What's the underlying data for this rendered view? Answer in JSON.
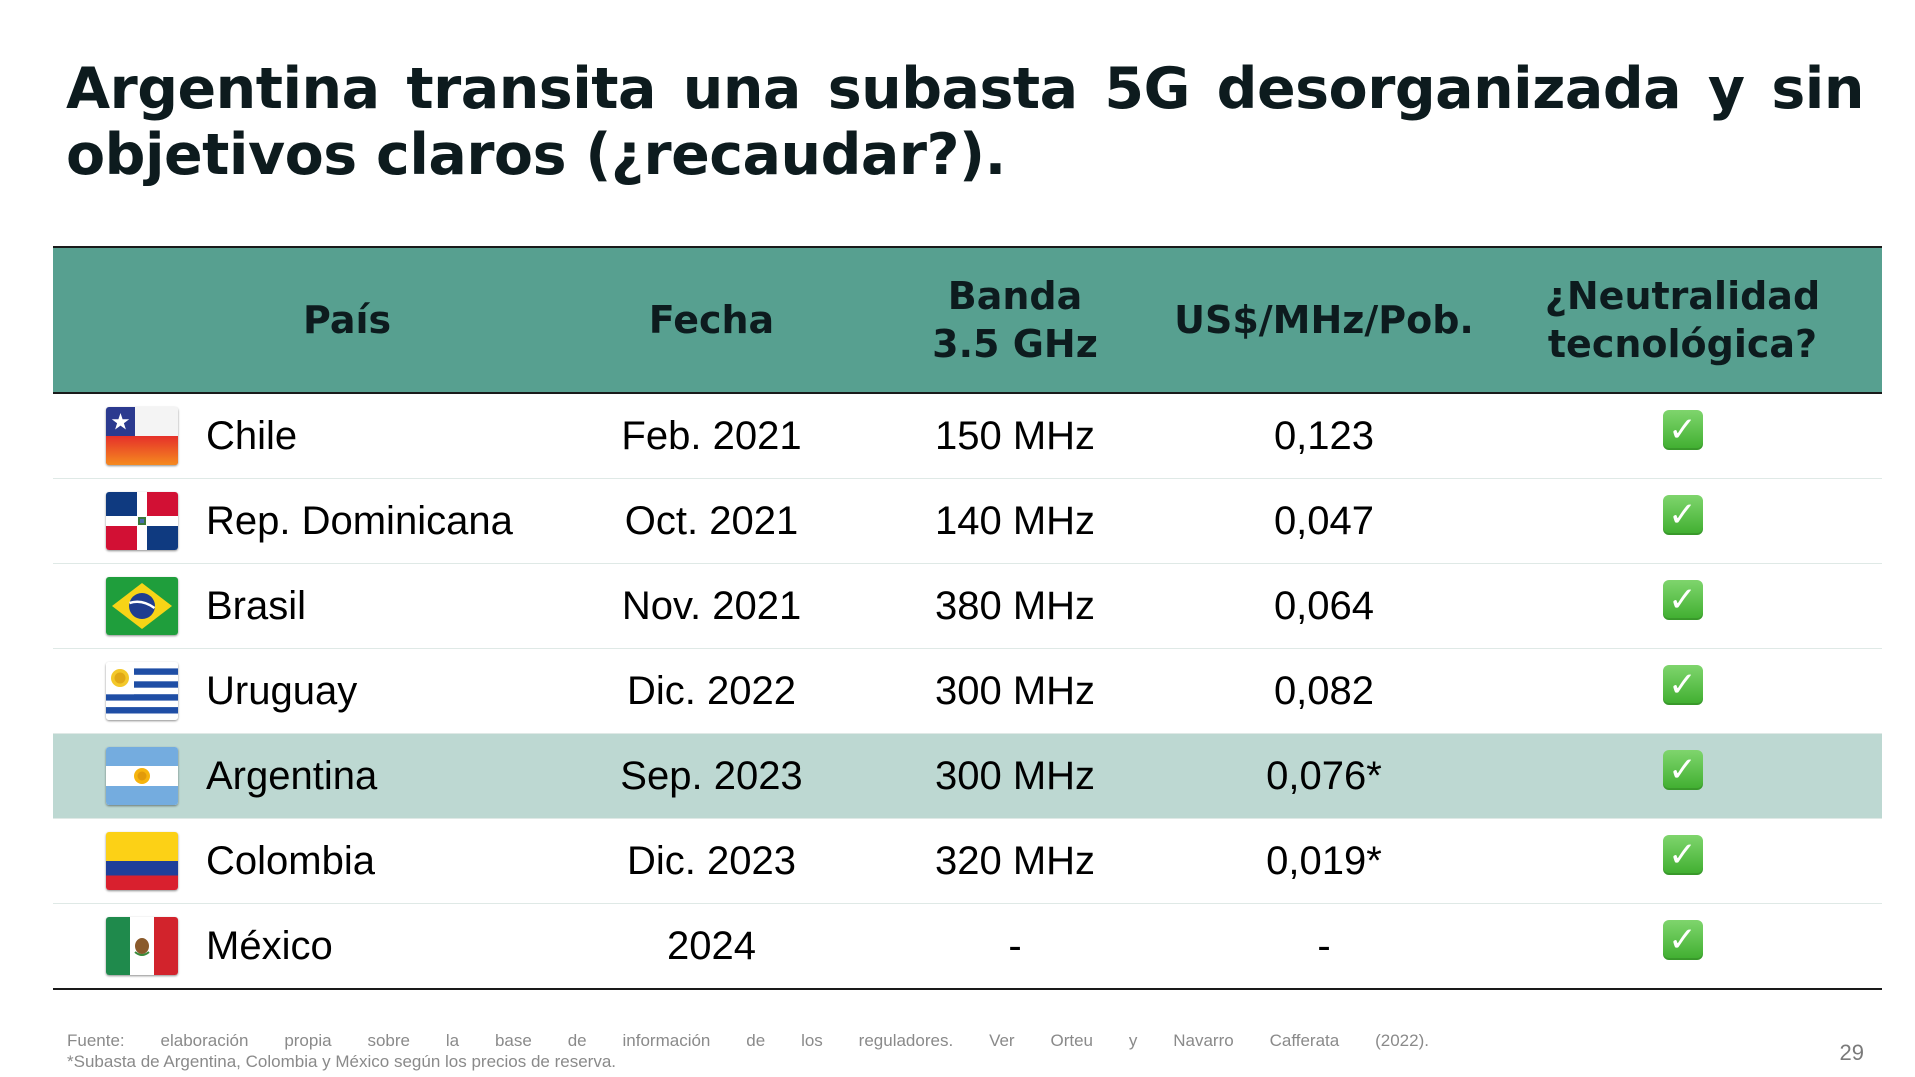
{
  "title": {
    "line1_words": [
      "Argentina",
      "transita",
      "una",
      "subasta",
      "5G",
      "desorganizada",
      "y",
      "sin"
    ],
    "line2": "objetivos claros (¿recaudar?)."
  },
  "table": {
    "headers": {
      "pais": "País",
      "fecha": "Fecha",
      "banda_line1": "Banda",
      "banda_line2": "3.5 GHz",
      "precio": "US$/MHz/Pob.",
      "neutralidad_line1": "¿Neutralidad",
      "neutralidad_line2": "tecnológica?"
    },
    "rows": [
      {
        "flag": "chile-flag-icon",
        "pais": "Chile",
        "fecha": "Feb. 2021",
        "banda": "150 MHz",
        "precio": "0,123",
        "neutralidad": "✓"
      },
      {
        "flag": "dominican-republic-flag-icon",
        "pais": "Rep. Dominicana",
        "fecha": "Oct. 2021",
        "banda": "140 MHz",
        "precio": "0,047",
        "neutralidad": "✓"
      },
      {
        "flag": "brazil-flag-icon",
        "pais": "Brasil",
        "fecha": "Nov. 2021",
        "banda": "380 MHz",
        "precio": "0,064",
        "neutralidad": "✓"
      },
      {
        "flag": "uruguay-flag-icon",
        "pais": "Uruguay",
        "fecha": "Dic. 2022",
        "banda": "300 MHz",
        "precio": "0,082",
        "neutralidad": "✓"
      },
      {
        "flag": "argentina-flag-icon",
        "pais": "Argentina",
        "fecha": "Sep. 2023",
        "banda": "300 MHz",
        "precio": "0,076*",
        "neutralidad": "✓"
      },
      {
        "flag": "colombia-flag-icon",
        "pais": "Colombia",
        "fecha": "Dic. 2023",
        "banda": "320 MHz",
        "precio": "0,019*",
        "neutralidad": "✓"
      },
      {
        "flag": "mexico-flag-icon",
        "pais": "México",
        "fecha": "2024",
        "banda": "-",
        "precio": "-",
        "neutralidad": "✓"
      }
    ],
    "highlight_color": "#bdd8d2",
    "header_color": "#57a090",
    "check_color": "#3fae2f"
  },
  "footnote": {
    "source_words": [
      "Fuente:",
      "elaboración",
      "propia",
      "sobre",
      "la",
      "base",
      "de",
      "información",
      "de",
      "los",
      "reguladores.",
      "Ver",
      "Orteu",
      "y",
      "Navarro",
      "Cafferata",
      "(2022)."
    ],
    "note": "*Subasta de Argentina, Colombia y México según los precios de reserva."
  },
  "page_number": "29"
}
